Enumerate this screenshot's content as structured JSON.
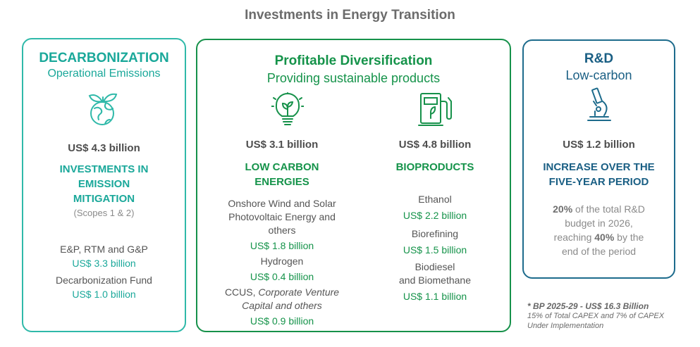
{
  "page_title": "Investments in Energy Transition",
  "colors": {
    "decarbonization": "#2fb9a9",
    "diversification": "#16914a",
    "rd": "#1d6b8c"
  },
  "decarbonization": {
    "title": "DECARBONIZATION",
    "subtitle": "Operational Emissions",
    "icon": "globe-leaves-icon",
    "amount": "US$ 4.3 billion",
    "category_line1": "INVESTMENTS IN",
    "category_line2": "EMISSION",
    "category_line3": "MITIGATION",
    "scopes": "(Scopes 1 & 2)",
    "items": [
      {
        "label": "E&P, RTM and G&P",
        "value": "US$ 3.3 billion"
      },
      {
        "label": "Decarbonization Fund",
        "value": "US$ 1.0 billion"
      }
    ]
  },
  "diversification": {
    "title": "Profitable Diversification",
    "subtitle": "Providing sustainable products",
    "low_carbon": {
      "icon": "lightbulb-plant-icon",
      "amount": "US$ 3.1 billion",
      "category_line1": "LOW CARBON",
      "category_line2": "ENERGIES",
      "items": [
        {
          "label_line1": "Onshore Wind and Solar",
          "label_line2": "Photovoltaic Energy and",
          "label_line3": "others",
          "value": "US$ 1.8 billion"
        },
        {
          "label_line1": "Hydrogen",
          "value": "US$ 0.4 billion"
        },
        {
          "label_line1": "CCUS, ",
          "label_italic1": "Corporate Venture",
          "label_italic2": "Capital and others",
          "value": "US$ 0.9 billion"
        }
      ]
    },
    "bioproducts": {
      "icon": "fuel-pump-leaf-icon",
      "amount": "US$ 4.8 billion",
      "category": "BIOPRODUCTS",
      "items": [
        {
          "label_line1": "Ethanol",
          "value": "US$ 2.2 billion"
        },
        {
          "label_line1": "Biorefining",
          "value": "US$ 1.5 billion"
        },
        {
          "label_line1": "Biodiesel",
          "label_line2": "and Biomethane",
          "value": "US$ 1.1 billion"
        }
      ]
    }
  },
  "rd": {
    "title": "R&D",
    "subtitle": "Low-carbon",
    "icon": "microscope-icon",
    "amount": "US$ 1.2 billion",
    "category_line1": "INCREASE OVER THE",
    "category_line2": "FIVE-YEAR PERIOD",
    "desc_pct1": "20%",
    "desc_line1_rest": " of the total R&D",
    "desc_line2": "budget in 2026,",
    "desc_line3_pre": "reaching ",
    "desc_pct2": "40%",
    "desc_line3_post": " by the",
    "desc_line4": "end of the period"
  },
  "footnote": {
    "line1": "* BP 2025-29 - US$ 16.3 Billion",
    "line2": "15% of Total CAPEX and 7% of CAPEX",
    "line3": "Under Implementation"
  }
}
